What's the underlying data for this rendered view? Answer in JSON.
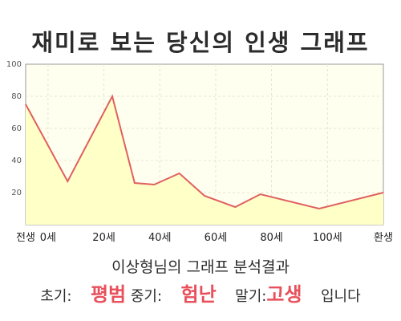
{
  "title": "재미로 보는 당신의 인생 그래프",
  "subtitle": "이상형님의 그래프 분석결과",
  "summary": {
    "early_label": "초기:",
    "early_value": "평범",
    "mid_label": "중기:",
    "mid_value": "험난",
    "late_label": "말기:",
    "late_value": "고생",
    "ending": "입니다"
  },
  "colors": {
    "line": "#e06060",
    "fill": "#ffffc8",
    "plot_bg": "#fffff0",
    "accent_text": "#e8505b"
  },
  "chart_data": {
    "type": "area",
    "title": "",
    "xlabel": "",
    "ylabel": "",
    "xlim": [
      -8,
      120
    ],
    "ylim": [
      0,
      100
    ],
    "grid": true,
    "x_ticks": [
      {
        "x": -8,
        "label": "전생"
      },
      {
        "x": 0,
        "label": "0세"
      },
      {
        "x": 20,
        "label": "20세"
      },
      {
        "x": 40,
        "label": "40세"
      },
      {
        "x": 60,
        "label": "60세"
      },
      {
        "x": 80,
        "label": "80세"
      },
      {
        "x": 100,
        "label": "100세"
      },
      {
        "x": 120,
        "label": "환생"
      }
    ],
    "y_ticks": [
      20,
      40,
      60,
      80,
      100
    ],
    "points": [
      {
        "x": -8,
        "y": 75
      },
      {
        "x": 7,
        "y": 27
      },
      {
        "x": 23,
        "y": 80
      },
      {
        "x": 31,
        "y": 26
      },
      {
        "x": 38,
        "y": 25
      },
      {
        "x": 47,
        "y": 32
      },
      {
        "x": 56,
        "y": 18
      },
      {
        "x": 67,
        "y": 11
      },
      {
        "x": 76,
        "y": 19
      },
      {
        "x": 97,
        "y": 10
      },
      {
        "x": 120,
        "y": 20
      }
    ]
  }
}
